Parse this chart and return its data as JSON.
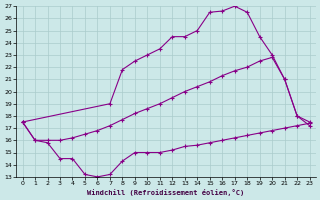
{
  "xlabel": "Windchill (Refroidissement éolien,°C)",
  "background_color": "#cce8e8",
  "grid_color": "#aacccc",
  "line_color": "#880088",
  "xlim": [
    -0.5,
    23.5
  ],
  "ylim": [
    13,
    27
  ],
  "yticks": [
    13,
    14,
    15,
    16,
    17,
    18,
    19,
    20,
    21,
    22,
    23,
    24,
    25,
    26,
    27
  ],
  "xticks": [
    0,
    1,
    2,
    3,
    4,
    5,
    6,
    7,
    8,
    9,
    10,
    11,
    12,
    13,
    14,
    15,
    16,
    17,
    18,
    19,
    20,
    21,
    22,
    23
  ],
  "series1_x": [
    0,
    1,
    2,
    3,
    4,
    5,
    6,
    7,
    8,
    9,
    10,
    11,
    12,
    13,
    14,
    15,
    16,
    17,
    18,
    19,
    20,
    21,
    22,
    23
  ],
  "series1_y": [
    17.5,
    16.0,
    15.8,
    14.5,
    14.5,
    13.2,
    13.0,
    13.2,
    14.3,
    15.0,
    15.0,
    15.0,
    15.2,
    15.5,
    15.6,
    15.8,
    16.0,
    16.2,
    16.4,
    16.6,
    16.8,
    17.0,
    17.2,
    17.4
  ],
  "series2_x": [
    0,
    7,
    8,
    9,
    10,
    11,
    12,
    13,
    14,
    15,
    16,
    17,
    18,
    19,
    20,
    21,
    22,
    23
  ],
  "series2_y": [
    17.5,
    19.0,
    21.8,
    22.5,
    23.0,
    23.5,
    24.5,
    24.5,
    25.0,
    26.5,
    26.6,
    27.0,
    26.5,
    24.5,
    23.0,
    21.0,
    18.0,
    17.2
  ],
  "series3_x": [
    0,
    1,
    2,
    3,
    4,
    5,
    6,
    7,
    8,
    9,
    10,
    11,
    12,
    13,
    14,
    15,
    16,
    17,
    18,
    19,
    20,
    21,
    22,
    23
  ],
  "series3_y": [
    17.5,
    16.0,
    16.0,
    16.0,
    16.2,
    16.5,
    16.8,
    17.2,
    17.7,
    18.2,
    18.6,
    19.0,
    19.5,
    20.0,
    20.4,
    20.8,
    21.3,
    21.7,
    22.0,
    22.5,
    22.8,
    21.0,
    18.0,
    17.5
  ]
}
